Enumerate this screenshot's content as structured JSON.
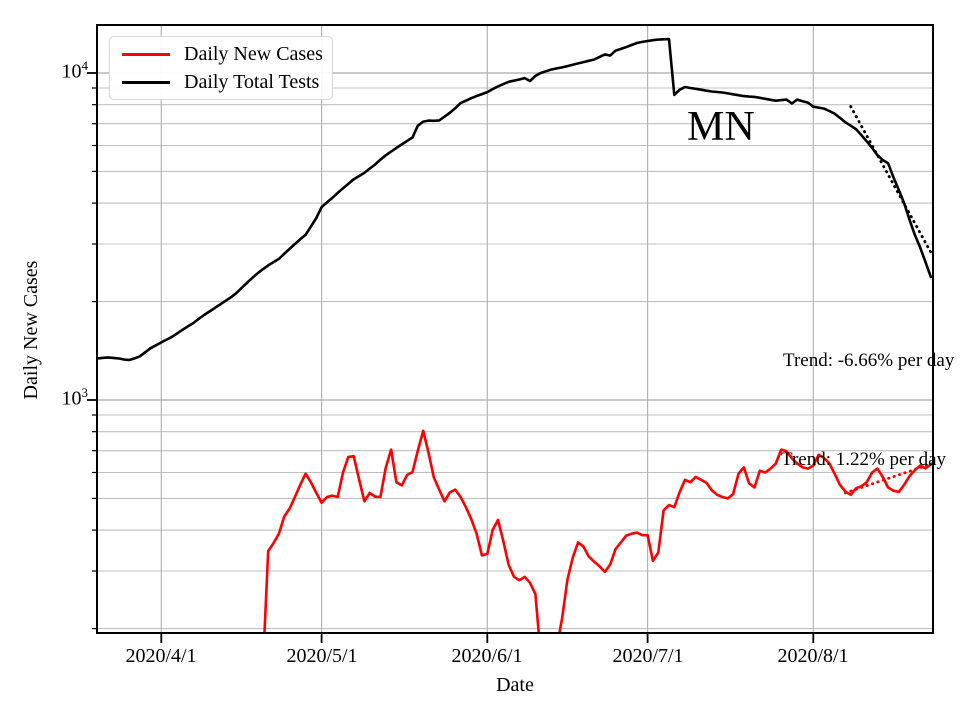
{
  "chart_data": {
    "type": "line",
    "xlabel": "Date",
    "ylabel": "Daily New Cases",
    "grid": true,
    "x_axis": {
      "tick_labels": [
        "2020/4/1",
        "2020/5/1",
        "2020/6/1",
        "2020/7/1",
        "2020/8/1"
      ],
      "tick_dates": [
        "4/1",
        "5/1",
        "6/1",
        "7/1",
        "8/1"
      ],
      "range": [
        "3/20",
        "8/24"
      ]
    },
    "y_axis": {
      "scale": "log",
      "range": [
        194,
        14000
      ],
      "tick_labels": [
        {
          "base": "10",
          "exp": "4",
          "value": 10000
        },
        {
          "base": "10",
          "exp": "3",
          "value": 1000
        }
      ]
    },
    "legend": {
      "position": "upper left",
      "items": [
        {
          "label": "Daily New Cases",
          "color": "#ff0000"
        },
        {
          "label": "Daily Total Tests",
          "color": "#000000"
        }
      ]
    },
    "annotations": [
      {
        "text": "MN"
      },
      {
        "text": "Trend: -6.66% per day"
      },
      {
        "text": "Trend: 1.22% per day"
      }
    ],
    "series": [
      {
        "name": "Daily New Cases",
        "color": "#ff0000",
        "style": "solid",
        "points": [
          [
            "4/20",
            150
          ],
          [
            "4/21",
            345
          ],
          [
            "4/22",
            365
          ],
          [
            "4/23",
            390
          ],
          [
            "4/24",
            440
          ],
          [
            "4/25",
            465
          ],
          [
            "4/26",
            505
          ],
          [
            "4/27",
            550
          ],
          [
            "4/28",
            595
          ],
          [
            "4/29",
            560
          ],
          [
            "4/30",
            520
          ],
          [
            "5/1",
            485
          ],
          [
            "5/2",
            505
          ],
          [
            "5/3",
            510
          ],
          [
            "5/4",
            505
          ],
          [
            "5/5",
            600
          ],
          [
            "5/6",
            670
          ],
          [
            "5/7",
            673
          ],
          [
            "5/8",
            573
          ],
          [
            "5/9",
            490
          ],
          [
            "5/10",
            520
          ],
          [
            "5/11",
            506
          ],
          [
            "5/12",
            505
          ],
          [
            "5/13",
            620
          ],
          [
            "5/14",
            705
          ],
          [
            "5/15",
            560
          ],
          [
            "5/16",
            548
          ],
          [
            "5/17",
            590
          ],
          [
            "5/18",
            602
          ],
          [
            "5/19",
            700
          ],
          [
            "5/20",
            805
          ],
          [
            "5/21",
            690
          ],
          [
            "5/22",
            580
          ],
          [
            "5/23",
            532
          ],
          [
            "5/24",
            490
          ],
          [
            "5/25",
            522
          ],
          [
            "5/26",
            532
          ],
          [
            "5/27",
            505
          ],
          [
            "5/28",
            470
          ],
          [
            "5/29",
            432
          ],
          [
            "5/30",
            390
          ],
          [
            "5/31",
            335
          ],
          [
            "6/1",
            338
          ],
          [
            "6/2",
            400
          ],
          [
            "6/3",
            430
          ],
          [
            "6/4",
            370
          ],
          [
            "6/5",
            313
          ],
          [
            "6/6",
            288
          ],
          [
            "6/7",
            281
          ],
          [
            "6/8",
            288
          ],
          [
            "6/9",
            276
          ],
          [
            "6/10",
            255
          ],
          [
            "6/11",
            165
          ],
          [
            "6/12",
            140
          ],
          [
            "6/13",
            150
          ],
          [
            "6/14",
            175
          ],
          [
            "6/15",
            215
          ],
          [
            "6/16",
            282
          ],
          [
            "6/17",
            330
          ],
          [
            "6/18",
            367
          ],
          [
            "6/19",
            356
          ],
          [
            "6/20",
            332
          ],
          [
            "6/21",
            320
          ],
          [
            "6/22",
            310
          ],
          [
            "6/23",
            298
          ],
          [
            "6/24",
            314
          ],
          [
            "6/25",
            350
          ],
          [
            "6/26",
            367
          ],
          [
            "6/27",
            385
          ],
          [
            "6/28",
            390
          ],
          [
            "6/29",
            393
          ],
          [
            "6/30",
            386
          ],
          [
            "7/1",
            386
          ],
          [
            "7/2",
            322
          ],
          [
            "7/3",
            342
          ],
          [
            "7/4",
            460
          ],
          [
            "7/5",
            477
          ],
          [
            "7/6",
            470
          ],
          [
            "7/7",
            523
          ],
          [
            "7/8",
            570
          ],
          [
            "7/9",
            560
          ],
          [
            "7/10",
            582
          ],
          [
            "7/11",
            570
          ],
          [
            "7/12",
            558
          ],
          [
            "7/13",
            530
          ],
          [
            "7/14",
            513
          ],
          [
            "7/15",
            505
          ],
          [
            "7/16",
            500
          ],
          [
            "7/17",
            515
          ],
          [
            "7/18",
            595
          ],
          [
            "7/19",
            622
          ],
          [
            "7/20",
            556
          ],
          [
            "7/21",
            540
          ],
          [
            "7/22",
            608
          ],
          [
            "7/23",
            600
          ],
          [
            "7/24",
            617
          ],
          [
            "7/25",
            640
          ],
          [
            "7/26",
            705
          ],
          [
            "7/27",
            697
          ],
          [
            "7/28",
            663
          ],
          [
            "7/29",
            640
          ],
          [
            "7/30",
            622
          ],
          [
            "7/31",
            617
          ],
          [
            "8/1",
            630
          ],
          [
            "8/2",
            680
          ],
          [
            "8/3",
            665
          ],
          [
            "8/4",
            640
          ],
          [
            "8/5",
            595
          ],
          [
            "8/6",
            550
          ],
          [
            "8/7",
            525
          ],
          [
            "8/8",
            513
          ],
          [
            "8/9",
            537
          ],
          [
            "8/10",
            545
          ],
          [
            "8/11",
            560
          ],
          [
            "8/12",
            600
          ],
          [
            "8/13",
            617
          ],
          [
            "8/14",
            582
          ],
          [
            "8/15",
            540
          ],
          [
            "8/16",
            528
          ],
          [
            "8/17",
            523
          ],
          [
            "8/18",
            550
          ],
          [
            "8/19",
            585
          ],
          [
            "8/20",
            610
          ],
          [
            "8/21",
            630
          ],
          [
            "8/22",
            618
          ],
          [
            "8/23",
            635
          ]
        ]
      },
      {
        "name": "Daily Total Tests",
        "color": "#000000",
        "style": "solid",
        "points": [
          [
            "3/20",
            1340
          ],
          [
            "3/21",
            1345
          ],
          [
            "3/22",
            1350
          ],
          [
            "3/23",
            1345
          ],
          [
            "3/24",
            1340
          ],
          [
            "3/25",
            1330
          ],
          [
            "3/26",
            1325
          ],
          [
            "3/27",
            1340
          ],
          [
            "3/28",
            1360
          ],
          [
            "3/29",
            1400
          ],
          [
            "3/30",
            1440
          ],
          [
            "3/31",
            1470
          ],
          [
            "4/1",
            1500
          ],
          [
            "4/2",
            1530
          ],
          [
            "4/3",
            1560
          ],
          [
            "4/4",
            1600
          ],
          [
            "4/5",
            1640
          ],
          [
            "4/6",
            1680
          ],
          [
            "4/7",
            1720
          ],
          [
            "4/8",
            1770
          ],
          [
            "4/9",
            1820
          ],
          [
            "4/10",
            1865
          ],
          [
            "4/11",
            1910
          ],
          [
            "4/12",
            1960
          ],
          [
            "4/13",
            2010
          ],
          [
            "4/14",
            2060
          ],
          [
            "4/15",
            2120
          ],
          [
            "4/16",
            2200
          ],
          [
            "4/17",
            2280
          ],
          [
            "4/18",
            2360
          ],
          [
            "4/19",
            2440
          ],
          [
            "4/20",
            2510
          ],
          [
            "4/21",
            2580
          ],
          [
            "4/22",
            2640
          ],
          [
            "4/23",
            2700
          ],
          [
            "4/24",
            2800
          ],
          [
            "4/25",
            2900
          ],
          [
            "4/26",
            3000
          ],
          [
            "4/27",
            3100
          ],
          [
            "4/28",
            3200
          ],
          [
            "4/29",
            3390
          ],
          [
            "4/30",
            3600
          ],
          [
            "5/1",
            3890
          ],
          [
            "5/2",
            4020
          ],
          [
            "5/3",
            4150
          ],
          [
            "5/4",
            4300
          ],
          [
            "5/5",
            4440
          ],
          [
            "5/6",
            4580
          ],
          [
            "5/7",
            4730
          ],
          [
            "5/8",
            4840
          ],
          [
            "5/9",
            4950
          ],
          [
            "5/10",
            5100
          ],
          [
            "5/11",
            5250
          ],
          [
            "5/12",
            5430
          ],
          [
            "5/13",
            5600
          ],
          [
            "5/14",
            5750
          ],
          [
            "5/15",
            5900
          ],
          [
            "5/16",
            6050
          ],
          [
            "5/17",
            6200
          ],
          [
            "5/18",
            6350
          ],
          [
            "5/19",
            6900
          ],
          [
            "5/20",
            7100
          ],
          [
            "5/21",
            7150
          ],
          [
            "5/22",
            7140
          ],
          [
            "5/23",
            7160
          ],
          [
            "5/24",
            7350
          ],
          [
            "5/25",
            7560
          ],
          [
            "5/26",
            7800
          ],
          [
            "5/27",
            8090
          ],
          [
            "5/28",
            8230
          ],
          [
            "5/29",
            8375
          ],
          [
            "5/30",
            8500
          ],
          [
            "5/31",
            8620
          ],
          [
            "6/1",
            8740
          ],
          [
            "6/2",
            8920
          ],
          [
            "6/3",
            9100
          ],
          [
            "6/4",
            9250
          ],
          [
            "6/5",
            9400
          ],
          [
            "6/6",
            9480
          ],
          [
            "6/7",
            9550
          ],
          [
            "6/8",
            9650
          ],
          [
            "6/9",
            9450
          ],
          [
            "6/10",
            9800
          ],
          [
            "6/11",
            10000
          ],
          [
            "6/12",
            10130
          ],
          [
            "6/13",
            10250
          ],
          [
            "6/14",
            10330
          ],
          [
            "6/15",
            10400
          ],
          [
            "6/16",
            10500
          ],
          [
            "6/17",
            10600
          ],
          [
            "6/18",
            10700
          ],
          [
            "6/19",
            10800
          ],
          [
            "6/20",
            10900
          ],
          [
            "6/21",
            11000
          ],
          [
            "6/22",
            11200
          ],
          [
            "6/23",
            11400
          ],
          [
            "6/24",
            11300
          ],
          [
            "6/25",
            11700
          ],
          [
            "6/26",
            11850
          ],
          [
            "6/27",
            12000
          ],
          [
            "6/28",
            12180
          ],
          [
            "6/29",
            12350
          ],
          [
            "6/30",
            12450
          ],
          [
            "7/1",
            12530
          ],
          [
            "7/2",
            12600
          ],
          [
            "7/3",
            12650
          ],
          [
            "7/4",
            12680
          ],
          [
            "7/5",
            12700
          ],
          [
            "7/6",
            8570
          ],
          [
            "7/7",
            8890
          ],
          [
            "7/8",
            9060
          ],
          [
            "7/9",
            9000
          ],
          [
            "7/10",
            8950
          ],
          [
            "7/11",
            8890
          ],
          [
            "7/12",
            8830
          ],
          [
            "7/13",
            8780
          ],
          [
            "7/14",
            8750
          ],
          [
            "7/15",
            8720
          ],
          [
            "7/16",
            8660
          ],
          [
            "7/17",
            8610
          ],
          [
            "7/18",
            8550
          ],
          [
            "7/19",
            8500
          ],
          [
            "7/20",
            8470
          ],
          [
            "7/21",
            8450
          ],
          [
            "7/22",
            8400
          ],
          [
            "7/23",
            8340
          ],
          [
            "7/24",
            8280
          ],
          [
            "7/25",
            8230
          ],
          [
            "7/26",
            8260
          ],
          [
            "7/27",
            8290
          ],
          [
            "7/28",
            8070
          ],
          [
            "7/29",
            8290
          ],
          [
            "7/30",
            8200
          ],
          [
            "7/31",
            8120
          ],
          [
            "8/1",
            7890
          ],
          [
            "8/2",
            7840
          ],
          [
            "8/3",
            7780
          ],
          [
            "8/4",
            7650
          ],
          [
            "8/5",
            7510
          ],
          [
            "8/6",
            7290
          ],
          [
            "8/7",
            7070
          ],
          [
            "8/8",
            6900
          ],
          [
            "8/9",
            6735
          ],
          [
            "8/10",
            6460
          ],
          [
            "8/11",
            6180
          ],
          [
            "8/12",
            5900
          ],
          [
            "8/13",
            5610
          ],
          [
            "8/14",
            5420
          ],
          [
            "8/15",
            5300
          ],
          [
            "8/16",
            4800
          ],
          [
            "8/17",
            4390
          ],
          [
            "8/18",
            4000
          ],
          [
            "8/19",
            3560
          ],
          [
            "8/20",
            3200
          ],
          [
            "8/21",
            2930
          ],
          [
            "8/22",
            2640
          ],
          [
            "8/23",
            2380
          ]
        ]
      }
    ],
    "trendlines": [
      {
        "label": "Trend: -6.66% per day",
        "color": "#000000",
        "style": "dotted",
        "points": [
          [
            "8/8",
            7900
          ],
          [
            "8/23",
            2830
          ]
        ]
      },
      {
        "label": "Trend: 1.22% per day",
        "color": "#ff0000",
        "style": "dotted",
        "points": [
          [
            "8/7",
            520
          ],
          [
            "8/24",
            645
          ]
        ]
      }
    ]
  }
}
